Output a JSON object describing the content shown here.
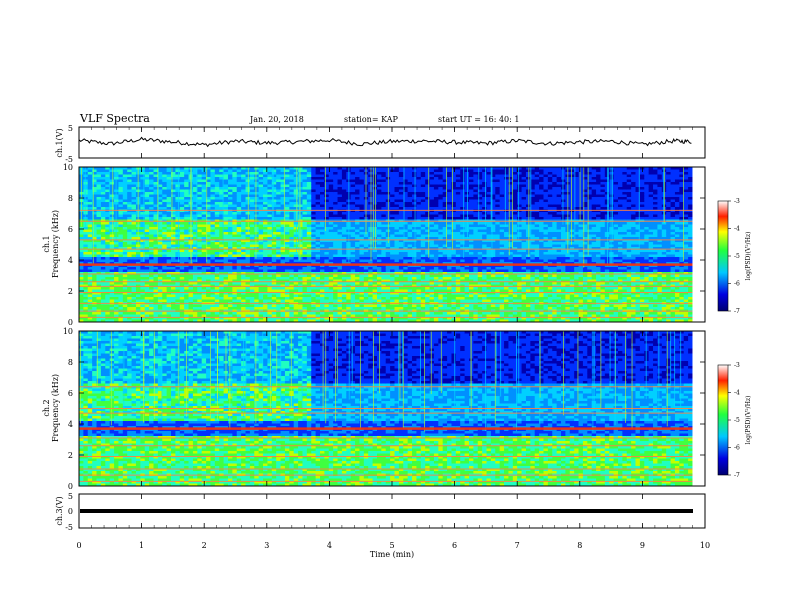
{
  "header": {
    "title": "VLF Spectra",
    "date": "Jan. 20, 2018",
    "station": "station= KAP",
    "start": "start  UT =   16: 40: 1"
  },
  "chart_data": [
    {
      "type": "line",
      "panel": "ch1-waveform",
      "ylabel": "ch.1(V)",
      "ylim": [
        -5,
        5
      ],
      "yticks": [
        "5",
        "-5"
      ],
      "x": [
        0,
        0.5,
        1,
        1.5,
        2,
        2.5,
        3,
        3.5,
        4,
        4.5,
        5,
        5.5,
        6,
        6.5,
        7,
        7.5,
        8,
        8.5,
        9,
        9.5,
        9.8
      ],
      "y": [
        0.8,
        -0.5,
        1.2,
        0.2,
        -0.9,
        0.5,
        -0.2,
        0.3,
        0.9,
        -0.6,
        0.4,
        0.6,
        0.1,
        -0.3,
        0.7,
        -0.4,
        0.2,
        0.5,
        -0.8,
        0.6,
        0.3
      ]
    },
    {
      "type": "heatmap",
      "panel": "ch1-spectrogram",
      "ylabel": "ch.1 Frequency (kHz)",
      "yticks": [
        "0",
        "2",
        "4",
        "6",
        "8",
        "10"
      ],
      "ylim": [
        0,
        10
      ],
      "xlim": [
        0,
        9.8
      ],
      "colorbar": {
        "label": "log(PSD)(V²/Hz)",
        "ticks": [
          "-3",
          "-4",
          "-5",
          "-6",
          "-7"
        ],
        "range": [
          -7,
          -3
        ]
      },
      "lines_khz": [
        0.3,
        0.7,
        1.2,
        1.9,
        2.3,
        2.6,
        3.1,
        3.7,
        4.7,
        5.3,
        6.5,
        7.2
      ],
      "regime_change_min": 3.65
    },
    {
      "type": "heatmap",
      "panel": "ch2-spectrogram",
      "ylabel": "ch.2 Frequency (kHz)",
      "yticks": [
        "0",
        "2",
        "4",
        "6",
        "8",
        "10"
      ],
      "ylim": [
        0,
        10
      ],
      "xlim": [
        0,
        9.8
      ],
      "colorbar": {
        "label": "log(PSD)(V²/Hz)",
        "ticks": [
          "-3",
          "-4",
          "-5",
          "-6",
          "-7"
        ],
        "range": [
          -7,
          -3
        ]
      },
      "lines_khz": [
        0.3,
        0.7,
        1.1,
        1.9,
        2.6,
        3.1,
        3.7,
        4.7,
        5.0,
        6.4
      ],
      "regime_change_min": 3.65
    },
    {
      "type": "line",
      "panel": "ch3-waveform",
      "ylabel": "ch.3(V)",
      "ylim": [
        -5,
        5
      ],
      "yticks": [
        "5",
        "0",
        "-5"
      ],
      "x": [
        0,
        9.8
      ],
      "y": [
        -0.8,
        -0.8
      ]
    }
  ],
  "xaxis": {
    "label": "Time  (min)",
    "ticks": [
      "0",
      "1",
      "2",
      "3",
      "4",
      "5",
      "6",
      "7",
      "8",
      "9",
      "10"
    ],
    "xlim": [
      0,
      10
    ]
  }
}
